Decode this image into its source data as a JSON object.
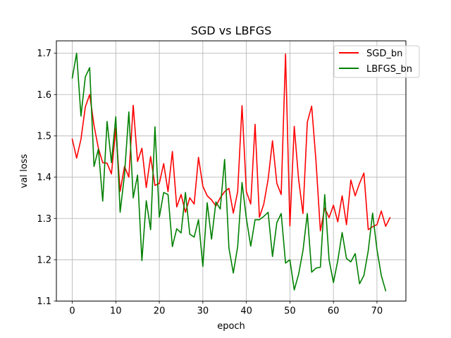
{
  "chart_data": {
    "type": "line",
    "title": "SGD vs LBFGS",
    "xlabel": "epoch",
    "ylabel": "val loss",
    "xlim": [
      -3.65,
      76.65
    ],
    "ylim": [
      1.1,
      1.73
    ],
    "xticks": [
      0,
      10,
      20,
      30,
      40,
      50,
      60,
      70
    ],
    "yticks": [
      1.1,
      1.2,
      1.3,
      1.4,
      1.5,
      1.6,
      1.7
    ],
    "xtick_labels": [
      "0",
      "10",
      "20",
      "30",
      "40",
      "50",
      "60",
      "70"
    ],
    "ytick_labels": [
      "1.1",
      "1.2",
      "1.3",
      "1.4",
      "1.5",
      "1.6",
      "1.7"
    ],
    "grid": true,
    "legend_position": "upper right",
    "series": [
      {
        "name": "SGD_bn",
        "color": "#ff0000",
        "x": [
          0,
          1,
          2,
          3,
          4,
          5,
          6,
          7,
          8,
          9,
          10,
          11,
          12,
          13,
          14,
          15,
          16,
          17,
          18,
          19,
          20,
          21,
          22,
          23,
          24,
          25,
          26,
          27,
          28,
          29,
          30,
          31,
          32,
          33,
          34,
          35,
          36,
          37,
          38,
          39,
          40,
          41,
          42,
          43,
          44,
          45,
          46,
          47,
          48,
          49,
          50,
          51,
          52,
          53,
          54,
          55,
          56,
          57,
          58,
          59,
          60,
          61,
          62,
          63,
          64,
          65,
          66,
          67,
          68,
          69,
          70,
          71,
          72,
          73
        ],
        "y": [
          1.492,
          1.446,
          1.492,
          1.57,
          1.6,
          1.525,
          1.47,
          1.435,
          1.434,
          1.408,
          1.519,
          1.366,
          1.426,
          1.4,
          1.574,
          1.438,
          1.47,
          1.375,
          1.45,
          1.38,
          1.385,
          1.433,
          1.365,
          1.462,
          1.328,
          1.358,
          1.315,
          1.35,
          1.335,
          1.448,
          1.378,
          1.355,
          1.345,
          1.33,
          1.35,
          1.365,
          1.373,
          1.313,
          1.365,
          1.573,
          1.365,
          1.335,
          1.528,
          1.303,
          1.335,
          1.395,
          1.488,
          1.385,
          1.358,
          1.698,
          1.282,
          1.523,
          1.395,
          1.312,
          1.533,
          1.572,
          1.438,
          1.27,
          1.325,
          1.302,
          1.332,
          1.292,
          1.355,
          1.285,
          1.393,
          1.355,
          1.385,
          1.41,
          1.273,
          1.28,
          1.285,
          1.318,
          1.281,
          1.302
        ]
      },
      {
        "name": "LBFGS_bn",
        "color": "#008000",
        "x": [
          0,
          1,
          2,
          3,
          4,
          5,
          6,
          7,
          8,
          9,
          10,
          11,
          12,
          13,
          14,
          15,
          16,
          17,
          18,
          19,
          20,
          21,
          22,
          23,
          24,
          25,
          26,
          27,
          28,
          29,
          30,
          31,
          32,
          33,
          34,
          35,
          36,
          37,
          38,
          39,
          40,
          41,
          42,
          43,
          44,
          45,
          46,
          47,
          48,
          49,
          50,
          51,
          52,
          53,
          54,
          55,
          56,
          57,
          58,
          59,
          60,
          61,
          62,
          63,
          64,
          65,
          66,
          67,
          68,
          69,
          70,
          71,
          72
        ],
        "y": [
          1.64,
          1.7,
          1.548,
          1.643,
          1.665,
          1.426,
          1.468,
          1.342,
          1.535,
          1.435,
          1.546,
          1.315,
          1.406,
          1.558,
          1.35,
          1.405,
          1.198,
          1.343,
          1.273,
          1.522,
          1.303,
          1.363,
          1.358,
          1.232,
          1.275,
          1.265,
          1.363,
          1.262,
          1.255,
          1.297,
          1.184,
          1.338,
          1.25,
          1.34,
          1.323,
          1.443,
          1.228,
          1.168,
          1.232,
          1.387,
          1.3,
          1.233,
          1.297,
          1.297,
          1.305,
          1.315,
          1.208,
          1.29,
          1.312,
          1.192,
          1.2,
          1.127,
          1.165,
          1.222,
          1.312,
          1.17,
          1.18,
          1.182,
          1.358,
          1.2,
          1.145,
          1.198,
          1.266,
          1.203,
          1.195,
          1.215,
          1.142,
          1.162,
          1.222,
          1.313,
          1.225,
          1.162,
          1.125
        ]
      }
    ]
  }
}
